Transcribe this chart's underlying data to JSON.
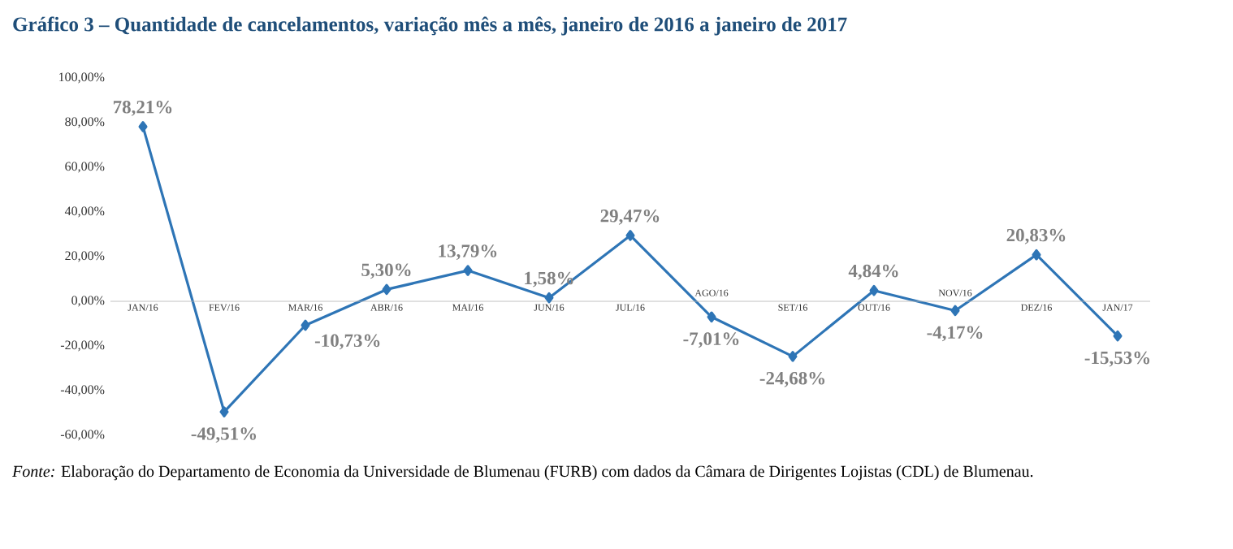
{
  "chart_data": {
    "type": "line",
    "title": "Gráfico 3 – Quantidade de cancelamentos, variação mês a mês, janeiro de 2016 a janeiro de 2017",
    "categories": [
      "JAN/16",
      "FEV/16",
      "MAR/16",
      "ABR/16",
      "MAI/16",
      "JUN/16",
      "JUL/16",
      "AGO/16",
      "SET/16",
      "OUT/16",
      "NOV/16",
      "DEZ/16",
      "JAN/17"
    ],
    "values": [
      78.21,
      -49.51,
      -10.73,
      5.3,
      13.79,
      1.58,
      29.47,
      -7.01,
      -24.68,
      4.84,
      -4.17,
      20.83,
      -15.53
    ],
    "value_labels": [
      "78,21%",
      "-49,51%",
      "-10,73%",
      "5,30%",
      "13,79%",
      "1,58%",
      "29,47%",
      "-7,01%",
      "-24,68%",
      "4,84%",
      "-4,17%",
      "20,83%",
      "-15,53%"
    ],
    "color": "#2e75b6",
    "marker": "diamond",
    "ylim": [
      -60,
      100
    ],
    "yticks": [
      {
        "value": -60,
        "label": "-60,00%"
      },
      {
        "value": -40,
        "label": "-40,00%"
      },
      {
        "value": -20,
        "label": "-20,00%"
      },
      {
        "value": 0,
        "label": "0,00%"
      },
      {
        "value": 20,
        "label": "20,00%"
      },
      {
        "value": 40,
        "label": "40,00%"
      },
      {
        "value": 60,
        "label": "60,00%"
      },
      {
        "value": 80,
        "label": "80,00%"
      },
      {
        "value": 100,
        "label": "100,00%"
      }
    ],
    "annotations": [
      "*Fonte:* Elaboração do Departamento de Economia da Universidade de Blumenau (FURB) com dados da Câmara de Dirigentes Lojistas (CDL) de Blumenau."
    ]
  }
}
